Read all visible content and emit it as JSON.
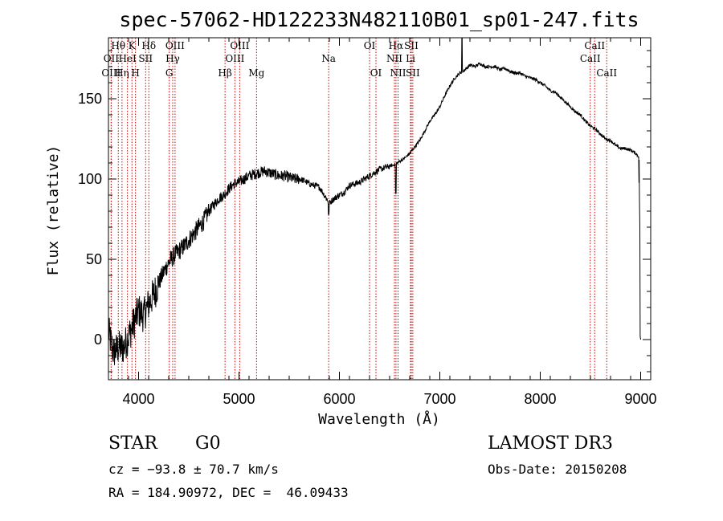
{
  "chart_data": {
    "type": "line",
    "title": "spec-57062-HD122233N482110B01_sp01-247.fits",
    "xlabel": "Wavelength (Å)",
    "ylabel": "Flux (relative)",
    "xlim": [
      3700,
      9100
    ],
    "ylim": [
      -25,
      188
    ],
    "xticks": [
      4000,
      5000,
      6000,
      7000,
      8000,
      9000
    ],
    "yticks": [
      0,
      50,
      100,
      150
    ],
    "series": [
      {
        "name": "spectrum",
        "x": [
          3700,
          3750,
          3800,
          3850,
          3900,
          3950,
          4000,
          4050,
          4100,
          4150,
          4200,
          4250,
          4300,
          4350,
          4400,
          4450,
          4500,
          4550,
          4600,
          4650,
          4700,
          4750,
          4800,
          4850,
          4900,
          4950,
          5000,
          5050,
          5100,
          5150,
          5200,
          5250,
          5300,
          5350,
          5400,
          5450,
          5500,
          5550,
          5600,
          5650,
          5700,
          5750,
          5800,
          5850,
          5900,
          5950,
          6000,
          6050,
          6100,
          6150,
          6200,
          6250,
          6300,
          6350,
          6400,
          6450,
          6500,
          6550,
          6600,
          6650,
          6700,
          6750,
          6800,
          6850,
          6900,
          6950,
          7000,
          7050,
          7100,
          7150,
          7200,
          7250,
          7300,
          7350,
          7400,
          7450,
          7500,
          7550,
          7600,
          7650,
          7700,
          7750,
          7800,
          7850,
          7900,
          7950,
          8000,
          8050,
          8100,
          8150,
          8200,
          8250,
          8300,
          8350,
          8400,
          8450,
          8500,
          8550,
          8600,
          8650,
          8700,
          8750,
          8800,
          8850,
          8900,
          8950,
          8980,
          9000
        ],
        "y": [
          5,
          -8,
          -5,
          -5,
          2,
          10,
          18,
          15,
          22,
          28,
          35,
          42,
          48,
          52,
          55,
          58,
          62,
          66,
          70,
          74,
          80,
          84,
          88,
          90,
          94,
          97,
          98,
          100,
          102,
          103,
          104,
          105,
          104,
          103,
          102,
          102,
          101,
          100,
          100,
          99,
          97,
          96,
          95,
          90,
          85,
          88,
          90,
          92,
          96,
          97,
          98,
          100,
          102,
          104,
          106,
          107,
          108,
          109,
          111,
          113,
          116,
          120,
          124,
          130,
          136,
          140,
          145,
          152,
          158,
          163,
          166,
          168,
          171,
          170,
          172,
          170,
          170,
          170,
          168,
          169,
          167,
          166,
          166,
          164,
          163,
          162,
          160,
          158,
          155,
          154,
          151,
          148,
          145,
          142,
          140,
          136,
          133,
          131,
          128,
          125,
          124,
          121,
          119,
          119,
          118,
          116,
          114,
          0
        ]
      }
    ],
    "spectral_lines": [
      {
        "name": "Hθ",
        "wavelength": 3798,
        "row": 1
      },
      {
        "name": "OII",
        "wavelength": 3727,
        "row": 2
      },
      {
        "name": "OIII",
        "wavelength": 3727,
        "row": 3
      },
      {
        "name": "Hη",
        "wavelength": 3835,
        "row": 3
      },
      {
        "name": "K",
        "wavelength": 3934,
        "row": 1
      },
      {
        "name": "HeI",
        "wavelength": 3889,
        "row": 2
      },
      {
        "name": "H",
        "wavelength": 3969,
        "row": 3
      },
      {
        "name": "Hδ",
        "wavelength": 4102,
        "row": 1
      },
      {
        "name": "SII",
        "wavelength": 4070,
        "row": 2
      },
      {
        "name": "OIII",
        "wavelength": 4363,
        "row": 1
      },
      {
        "name": "Hγ",
        "wavelength": 4340,
        "row": 2
      },
      {
        "name": "G",
        "wavelength": 4305,
        "row": 3
      },
      {
        "name": "OIII",
        "wavelength": 5007,
        "row": 1
      },
      {
        "name": "OIII",
        "wavelength": 4959,
        "row": 2
      },
      {
        "name": "Hβ",
        "wavelength": 4861,
        "row": 3
      },
      {
        "name": "Mg",
        "wavelength": 5175,
        "row": 3
      },
      {
        "name": "Na",
        "wavelength": 5893,
        "row": 2
      },
      {
        "name": "OI",
        "wavelength": 6300,
        "row": 1
      },
      {
        "name": "OI",
        "wavelength": 6364,
        "row": 3
      },
      {
        "name": "Hα",
        "wavelength": 6563,
        "row": 1
      },
      {
        "name": "SII",
        "wavelength": 6716,
        "row": 1
      },
      {
        "name": "NII",
        "wavelength": 6548,
        "row": 2
      },
      {
        "name": "Li",
        "wavelength": 6708,
        "row": 2
      },
      {
        "name": "NII",
        "wavelength": 6584,
        "row": 3
      },
      {
        "name": "SII",
        "wavelength": 6731,
        "row": 3
      },
      {
        "name": "CaII",
        "wavelength": 8542,
        "row": 1
      },
      {
        "name": "CaII",
        "wavelength": 8498,
        "row": 2
      },
      {
        "name": "CaII",
        "wavelength": 8662,
        "row": 3
      }
    ],
    "line_color": "#000000",
    "marker_color": "#cc0000"
  },
  "info": {
    "object_type": "STAR",
    "subclass": "G0",
    "survey": "LAMOST DR3",
    "cz": "cz = −93.8 ± 70.7 km/s",
    "obs_date": "Obs-Date: 20150208",
    "coords": "RA = 184.90972, DEC =  46.09433"
  }
}
